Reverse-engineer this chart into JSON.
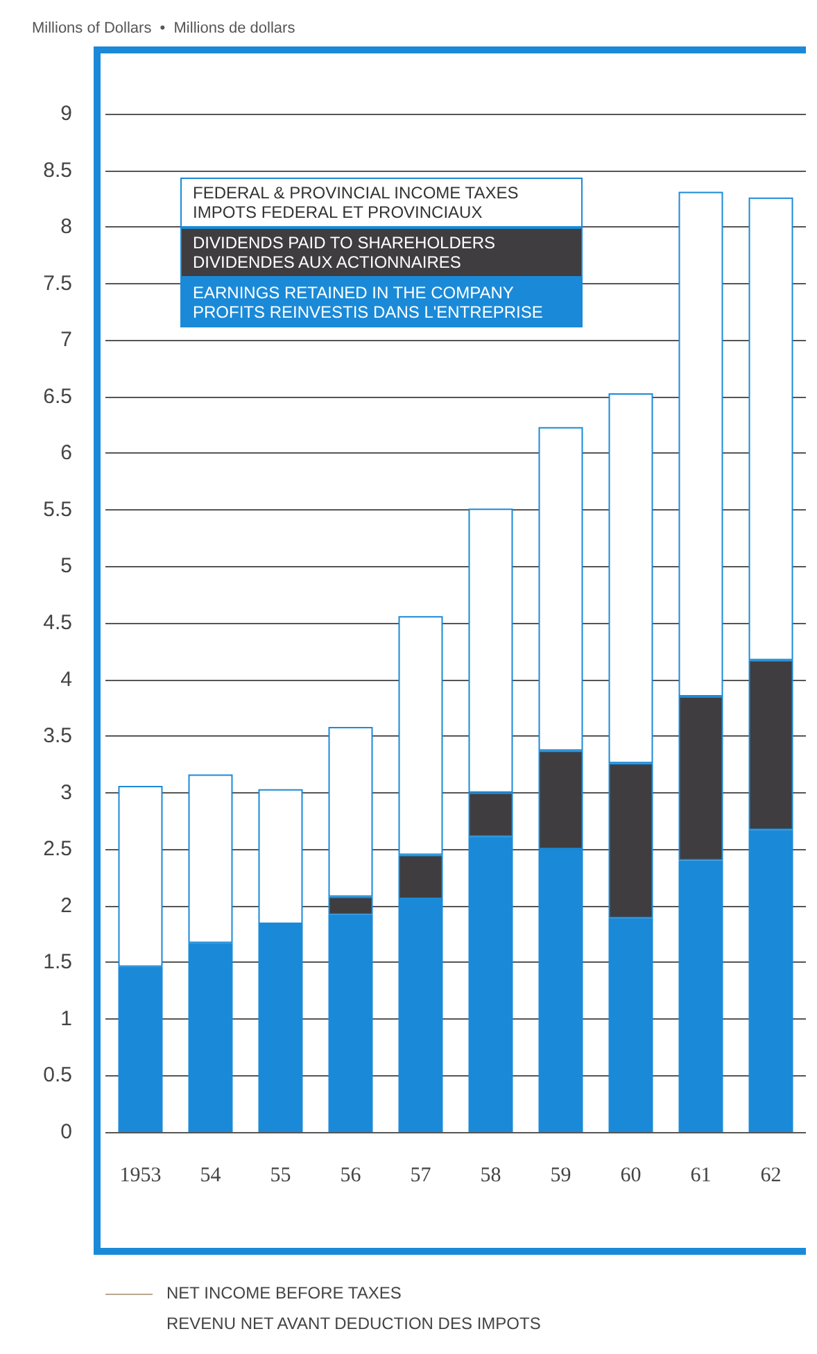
{
  "chart_data": {
    "type": "bar",
    "stacked": true,
    "ylabel": "Millions of Dollars  •  Millions de dollars",
    "categories": [
      "1953",
      "54",
      "55",
      "56",
      "57",
      "58",
      "59",
      "60",
      "61",
      "62"
    ],
    "series": [
      {
        "name": "EARNINGS RETAINED IN THE COMPANY\nPROFITS REINVESTIS DANS L'ENTREPRISE",
        "color": "#1a8ad8",
        "values": [
          1.46,
          1.67,
          1.84,
          1.92,
          2.06,
          2.61,
          2.5,
          1.89,
          2.4,
          2.67
        ]
      },
      {
        "name": "DIVIDENDS PAID TO SHAREHOLDERS\nDIVIDENDES AUX ACTIONNAIRES",
        "color": "#3f3d3f",
        "values": [
          null,
          null,
          null,
          0.16,
          0.39,
          0.39,
          0.87,
          1.37,
          1.45,
          1.5
        ]
      },
      {
        "name": "FEDERAL & PROVINCIAL INCOME TAXES\nIMPOTS FEDERAL ET PROVINCIAUX",
        "color": "#ffffff",
        "values": [
          1.6,
          1.49,
          1.19,
          1.5,
          2.11,
          2.51,
          2.86,
          3.27,
          4.46,
          4.09
        ]
      }
    ],
    "ylim": [
      0,
      9
    ],
    "yticks": [
      0,
      0.5,
      1,
      1.5,
      2,
      2.5,
      3,
      3.5,
      4,
      4.5,
      5,
      5.5,
      6,
      6.5,
      7,
      7.5,
      8,
      8.5,
      9
    ],
    "grid": "y",
    "legend": "top left",
    "annotations": [
      "NET INCOME BEFORE TAXES",
      "REVENU NET AVANT DEDUCTION DES IMPOTS"
    ]
  }
}
